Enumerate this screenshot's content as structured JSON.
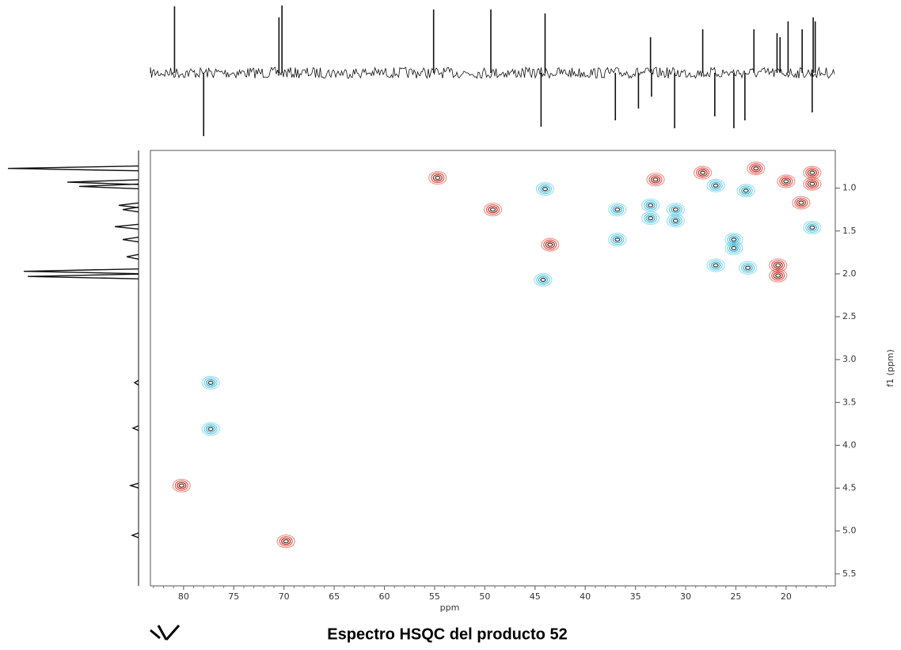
{
  "chart_data": {
    "type": "hsqc",
    "title": "Espectro HSQC del producto 52",
    "xlabel": "ppm",
    "ylabel": "f1 (ppm)",
    "xlim": [
      83.3,
      15.1
    ],
    "ylim": [
      0.56,
      5.64
    ],
    "xticks": [
      80,
      75,
      70,
      65,
      60,
      55,
      50,
      45,
      40,
      35,
      30,
      25,
      20
    ],
    "yticks": [
      {
        "value": 1,
        "label": "1.0"
      },
      1.5,
      {
        "value": 2,
        "label": "2.0"
      },
      2.5,
      {
        "value": 3,
        "label": "3.0"
      },
      3.5,
      {
        "value": 4,
        "label": "4.0"
      },
      4.5,
      {
        "value": 5,
        "label": "5.0"
      },
      5.5
    ],
    "series": [
      {
        "color": "#d02010",
        "x": [
          54.7,
          49.2,
          43.5,
          33.0,
          28.3,
          23.0,
          20.0,
          17.4,
          17.4,
          18.5,
          20.8,
          20.8,
          80.2,
          69.8
        ],
        "y": [
          0.88,
          1.25,
          1.66,
          0.9,
          0.82,
          0.77,
          0.92,
          0.82,
          0.95,
          1.17,
          1.9,
          2.02,
          4.47,
          5.12
        ]
      },
      {
        "color": "#30b8d8",
        "x": [
          44.0,
          44.2,
          36.8,
          36.8,
          33.5,
          33.5,
          31.0,
          31.0,
          27.0,
          24.0,
          25.2,
          25.2,
          27.0,
          23.8,
          17.4,
          77.3,
          77.3
        ],
        "y": [
          1.01,
          2.07,
          1.25,
          1.6,
          1.2,
          1.35,
          1.38,
          1.25,
          0.97,
          1.03,
          1.6,
          1.7,
          1.9,
          1.93,
          1.46,
          3.27,
          3.81
        ]
      }
    ],
    "top_trace": {
      "x": [
        80.9,
        70.5,
        70.2,
        55.1,
        49.4,
        44.0,
        33.5,
        28.3,
        23.2,
        20.9,
        20.6,
        19.8,
        18.4,
        17.3,
        17.1,
        78.0,
        44.4,
        37.0,
        34.7,
        33.4,
        31.1,
        27.1,
        25.2,
        24.1,
        17.4
      ],
      "values": [
        84,
        70,
        85,
        80,
        80,
        75,
        45,
        55,
        55,
        50,
        45,
        65,
        55,
        70,
        65,
        -80,
        -68,
        -60,
        -45,
        -30,
        -70,
        -55,
        -70,
        -60,
        -50
      ]
    },
    "left_trace": {
      "y": [
        0.77,
        0.93,
        0.98,
        1.2,
        1.25,
        1.45,
        1.6,
        1.8,
        1.97,
        2.03,
        3.27,
        3.8,
        4.47,
        5.05
      ],
      "values": [
        165,
        90,
        75,
        25,
        20,
        30,
        20,
        15,
        145,
        140,
        5,
        7,
        10,
        8
      ]
    }
  }
}
